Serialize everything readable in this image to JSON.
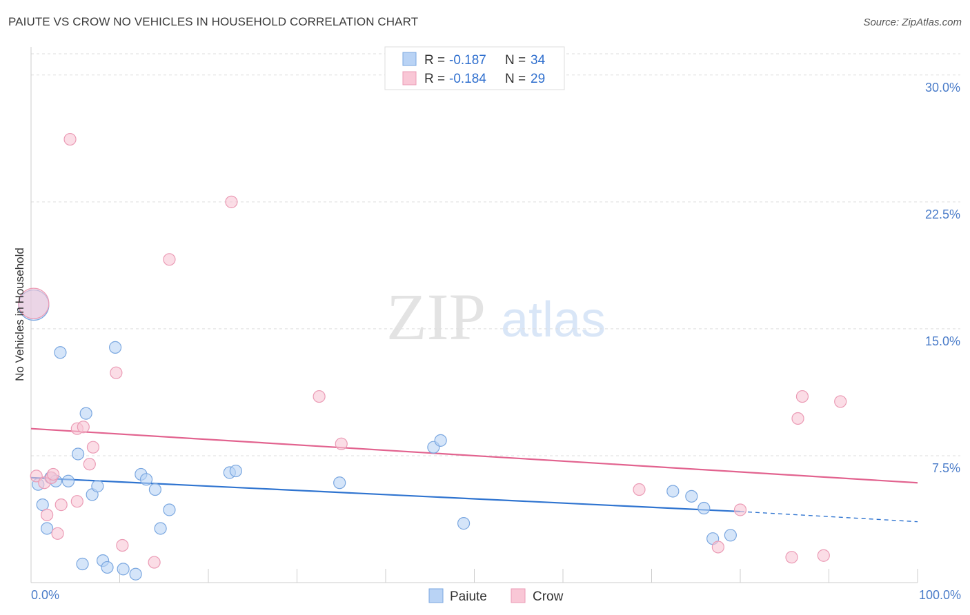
{
  "title": "PAIUTE VS CROW NO VEHICLES IN HOUSEHOLD CORRELATION CHART",
  "source": "Source: ZipAtlas.com",
  "watermark": {
    "zip": "ZIP",
    "atlas": "atlas"
  },
  "legend": {
    "rows": [
      {
        "r_label": "R =",
        "r_value": "-0.187",
        "n_label": "N =",
        "n_value": "34"
      },
      {
        "r_label": "R =",
        "r_value": "-0.184",
        "n_label": "N =",
        "n_value": "29"
      }
    ]
  },
  "colors": {
    "paiute_fill": "#b9d3f5",
    "paiute_stroke": "#7aa7e0",
    "paiute_line": "#2f74d0",
    "crow_fill": "#f9c7d6",
    "crow_stroke": "#eb9bb5",
    "crow_line": "#e2638f",
    "grid": "#dddddd",
    "axis_text": "#4a7cc9"
  },
  "chart_data": {
    "type": "scatter",
    "title": "PAIUTE VS CROW NO VEHICLES IN HOUSEHOLD CORRELATION CHART",
    "xlabel": "",
    "ylabel": "No Vehicles in Household",
    "xlim": [
      0,
      100
    ],
    "ylim": [
      0,
      31.5
    ],
    "x_tick_labels": [
      "0.0%",
      "100.0%"
    ],
    "y_ticks": [
      7.5,
      15.0,
      22.5,
      30.0
    ],
    "y_tick_labels": [
      "7.5%",
      "15.0%",
      "22.5%",
      "30.0%"
    ],
    "legend_position": "top-center",
    "series": [
      {
        "name": "Paiute",
        "r": -0.187,
        "n": 34,
        "trend": {
          "x0": 0,
          "y0": 6.2,
          "x1": 80,
          "y1": 4.2,
          "dash_to": 100,
          "dash_y": 3.6
        },
        "points": [
          {
            "x": 0.3,
            "y": 16.4,
            "big": true
          },
          {
            "x": 0.8,
            "y": 5.8
          },
          {
            "x": 1.3,
            "y": 4.6
          },
          {
            "x": 1.8,
            "y": 3.2
          },
          {
            "x": 2.2,
            "y": 6.2
          },
          {
            "x": 2.8,
            "y": 6.0
          },
          {
            "x": 3.3,
            "y": 13.6
          },
          {
            "x": 4.2,
            "y": 6.0
          },
          {
            "x": 5.3,
            "y": 7.6
          },
          {
            "x": 5.8,
            "y": 1.1
          },
          {
            "x": 6.2,
            "y": 10.0
          },
          {
            "x": 6.9,
            "y": 5.2
          },
          {
            "x": 7.5,
            "y": 5.7
          },
          {
            "x": 8.1,
            "y": 1.3
          },
          {
            "x": 8.6,
            "y": 0.9
          },
          {
            "x": 9.5,
            "y": 13.9
          },
          {
            "x": 10.4,
            "y": 0.8
          },
          {
            "x": 11.8,
            "y": 0.5
          },
          {
            "x": 12.4,
            "y": 6.4
          },
          {
            "x": 13.0,
            "y": 6.1
          },
          {
            "x": 14.0,
            "y": 5.5
          },
          {
            "x": 14.6,
            "y": 3.2
          },
          {
            "x": 15.6,
            "y": 4.3
          },
          {
            "x": 22.4,
            "y": 6.5
          },
          {
            "x": 23.1,
            "y": 6.6
          },
          {
            "x": 34.8,
            "y": 5.9
          },
          {
            "x": 45.4,
            "y": 8.0
          },
          {
            "x": 46.2,
            "y": 8.4
          },
          {
            "x": 48.8,
            "y": 3.5
          },
          {
            "x": 72.4,
            "y": 5.4
          },
          {
            "x": 74.5,
            "y": 5.1
          },
          {
            "x": 75.9,
            "y": 4.4
          },
          {
            "x": 76.9,
            "y": 2.6
          },
          {
            "x": 78.9,
            "y": 2.8
          }
        ]
      },
      {
        "name": "Crow",
        "r": -0.184,
        "n": 29,
        "trend": {
          "x0": 0,
          "y0": 9.1,
          "x1": 100,
          "y1": 5.9
        },
        "points": [
          {
            "x": 0.3,
            "y": 16.5,
            "big": true
          },
          {
            "x": 0.6,
            "y": 6.3
          },
          {
            "x": 1.5,
            "y": 5.9
          },
          {
            "x": 1.8,
            "y": 4.0
          },
          {
            "x": 2.3,
            "y": 6.2
          },
          {
            "x": 2.5,
            "y": 6.4
          },
          {
            "x": 3.0,
            "y": 2.9
          },
          {
            "x": 3.4,
            "y": 4.6
          },
          {
            "x": 4.4,
            "y": 26.2
          },
          {
            "x": 5.2,
            "y": 4.8
          },
          {
            "x": 5.2,
            "y": 9.1
          },
          {
            "x": 5.9,
            "y": 9.2
          },
          {
            "x": 6.6,
            "y": 7.0
          },
          {
            "x": 7.0,
            "y": 8.0
          },
          {
            "x": 9.6,
            "y": 12.4
          },
          {
            "x": 10.3,
            "y": 2.2
          },
          {
            "x": 13.9,
            "y": 1.2
          },
          {
            "x": 15.6,
            "y": 19.1
          },
          {
            "x": 22.6,
            "y": 22.5
          },
          {
            "x": 32.5,
            "y": 11.0
          },
          {
            "x": 35.0,
            "y": 8.2
          },
          {
            "x": 68.6,
            "y": 5.5
          },
          {
            "x": 77.5,
            "y": 2.1
          },
          {
            "x": 80.0,
            "y": 4.3
          },
          {
            "x": 85.8,
            "y": 1.5
          },
          {
            "x": 86.5,
            "y": 9.7
          },
          {
            "x": 87.0,
            "y": 11.0
          },
          {
            "x": 89.4,
            "y": 1.6
          },
          {
            "x": 91.3,
            "y": 10.7
          }
        ]
      }
    ]
  }
}
